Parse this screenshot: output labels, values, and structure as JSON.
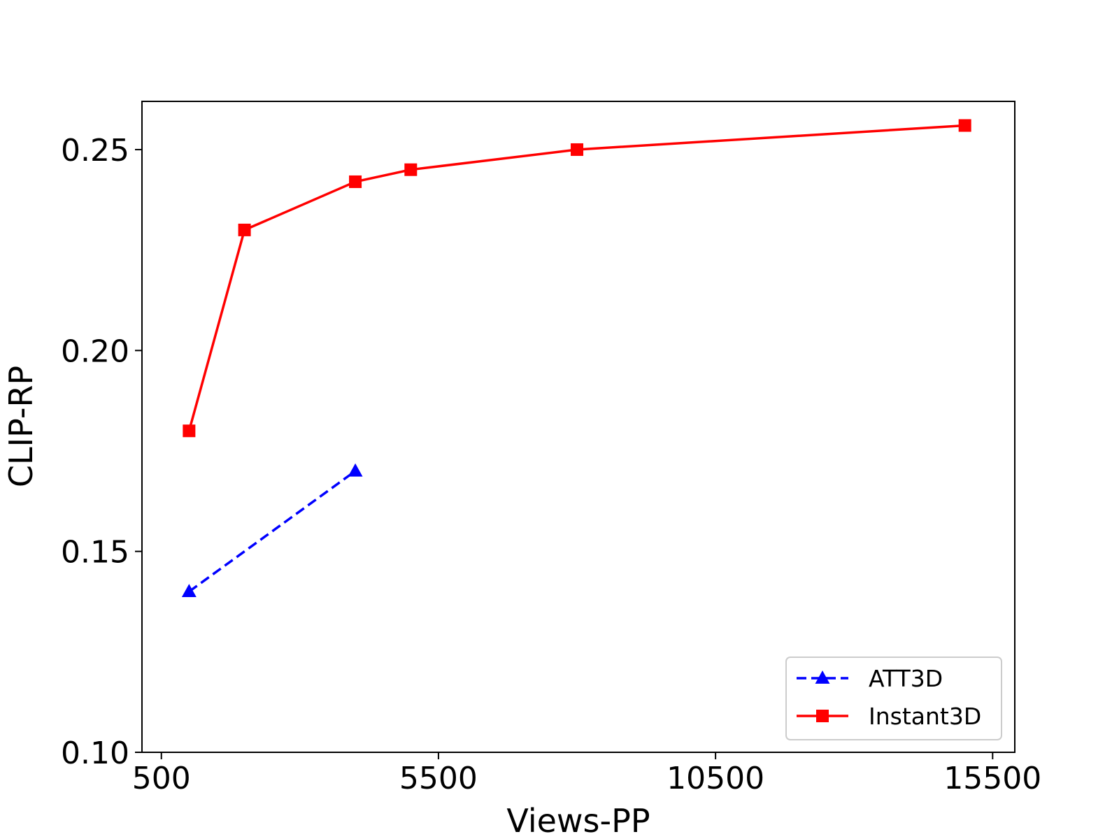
{
  "chart_data": {
    "type": "line",
    "xlabel": "Views-PP",
    "ylabel": "CLIP-RP",
    "xlim": [
      150,
      15900
    ],
    "ylim": [
      0.1,
      0.262
    ],
    "x_ticks": [
      500,
      5500,
      10500,
      15500
    ],
    "x_tick_labels": [
      "500",
      "5500",
      "10500",
      "15500"
    ],
    "y_ticks": [
      0.1,
      0.15,
      0.2,
      0.25
    ],
    "y_tick_labels": [
      "0.10",
      "0.15",
      "0.20",
      "0.25"
    ],
    "grid": false,
    "legend_position": "lower-right",
    "series": [
      {
        "name": "ATT3D",
        "color": "#0000ff",
        "line_style": "dashed",
        "marker": "triangle",
        "x": [
          1000,
          4000
        ],
        "y": [
          0.14,
          0.17
        ]
      },
      {
        "name": "Instant3D",
        "color": "#ff0000",
        "line_style": "solid",
        "marker": "square",
        "x": [
          1000,
          2000,
          4000,
          5000,
          8000,
          15000
        ],
        "y": [
          0.18,
          0.23,
          0.242,
          0.245,
          0.25,
          0.256
        ]
      }
    ]
  }
}
